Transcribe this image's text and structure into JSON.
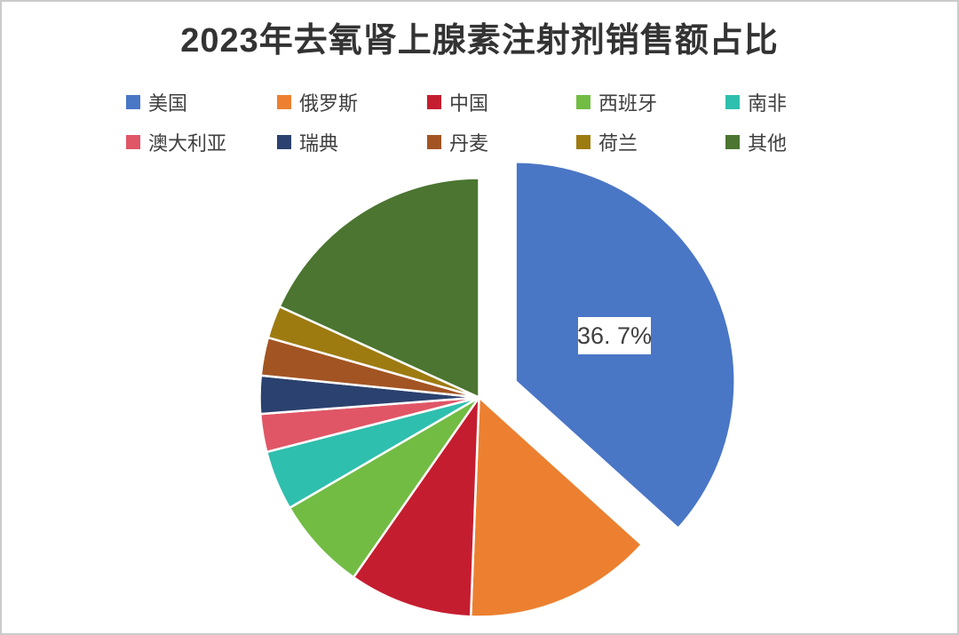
{
  "chart_data": {
    "type": "pie",
    "title": "2023年去氧肾上腺素注射剂销售额占比",
    "unit": "%",
    "start_angle_deg": 0,
    "direction": "clockwise",
    "legend_position": "top",
    "legend_rows": 2,
    "background_color": "#ffffff",
    "label_text_color": "#3f3f3f",
    "title_color": "#333333",
    "slices": [
      {
        "label": "美国",
        "value": 36.7,
        "color": "#4A76C6",
        "exploded": true,
        "data_label": "36. 7%"
      },
      {
        "label": "俄罗斯",
        "value": 13.9,
        "color": "#EC8030"
      },
      {
        "label": "中国",
        "value": 9.1,
        "color": "#C51D30"
      },
      {
        "label": "西班牙",
        "value": 6.9,
        "color": "#72BC44"
      },
      {
        "label": "南非",
        "value": 4.4,
        "color": "#2FBFAE"
      },
      {
        "label": "澳大利亚",
        "value": 2.8,
        "color": "#E05666"
      },
      {
        "label": "瑞典",
        "value": 2.8,
        "color": "#2B416F"
      },
      {
        "label": "丹麦",
        "value": 2.8,
        "color": "#A35423"
      },
      {
        "label": "荷兰",
        "value": 2.4,
        "color": "#9E7B11"
      },
      {
        "label": "其他",
        "value": 18.2,
        "color": "#4B7530"
      }
    ]
  }
}
